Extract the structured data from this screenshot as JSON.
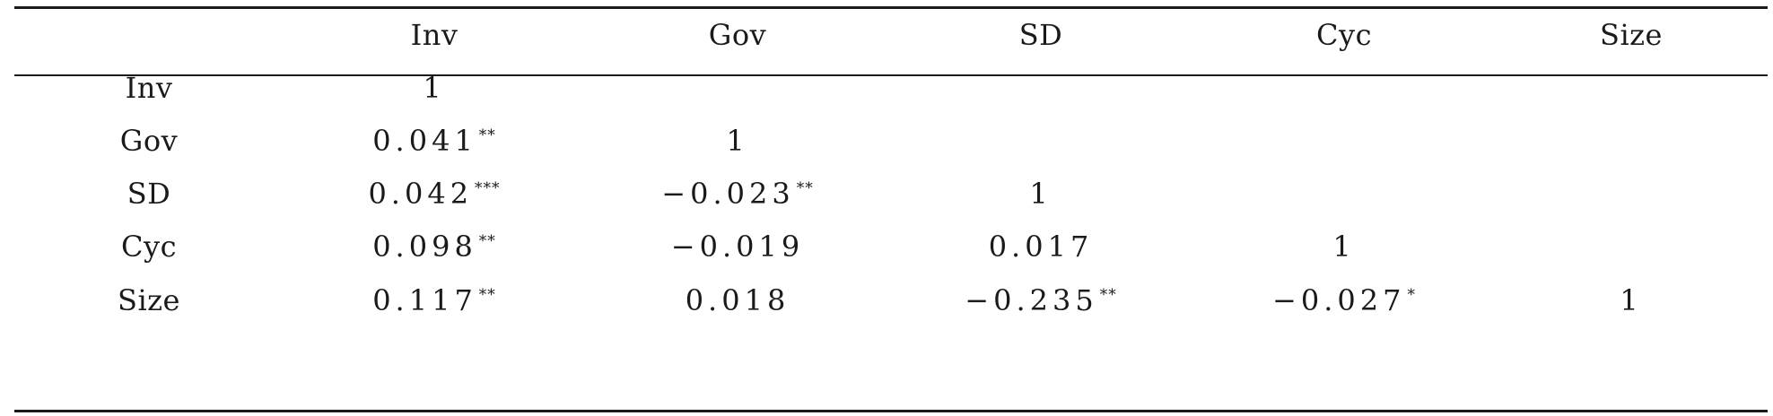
{
  "table": {
    "columns": [
      "",
      "Inv",
      "Gov",
      "SD",
      "Cyc",
      "Size"
    ],
    "rows": [
      {
        "label": "Inv",
        "cells": [
          {
            "value": "1",
            "sig": ""
          },
          null,
          null,
          null,
          null
        ]
      },
      {
        "label": "Gov",
        "cells": [
          {
            "value": "0.041",
            "sig": "**"
          },
          {
            "value": "1",
            "sig": ""
          },
          null,
          null,
          null
        ]
      },
      {
        "label": "SD",
        "cells": [
          {
            "value": "0.042",
            "sig": "***"
          },
          {
            "value": "−0.023",
            "sig": "**"
          },
          {
            "value": "1",
            "sig": ""
          },
          null,
          null
        ]
      },
      {
        "label": "Cyc",
        "cells": [
          {
            "value": "0.098",
            "sig": "**"
          },
          {
            "value": "−0.019",
            "sig": ""
          },
          {
            "value": "0.017",
            "sig": ""
          },
          {
            "value": "1",
            "sig": ""
          },
          null
        ]
      },
      {
        "label": "Size",
        "cells": [
          {
            "value": "0.117",
            "sig": "**"
          },
          {
            "value": "0.018",
            "sig": ""
          },
          {
            "value": "−0.235",
            "sig": "**"
          },
          {
            "value": "−0.027",
            "sig": "*"
          },
          {
            "value": "1",
            "sig": ""
          }
        ]
      }
    ]
  }
}
